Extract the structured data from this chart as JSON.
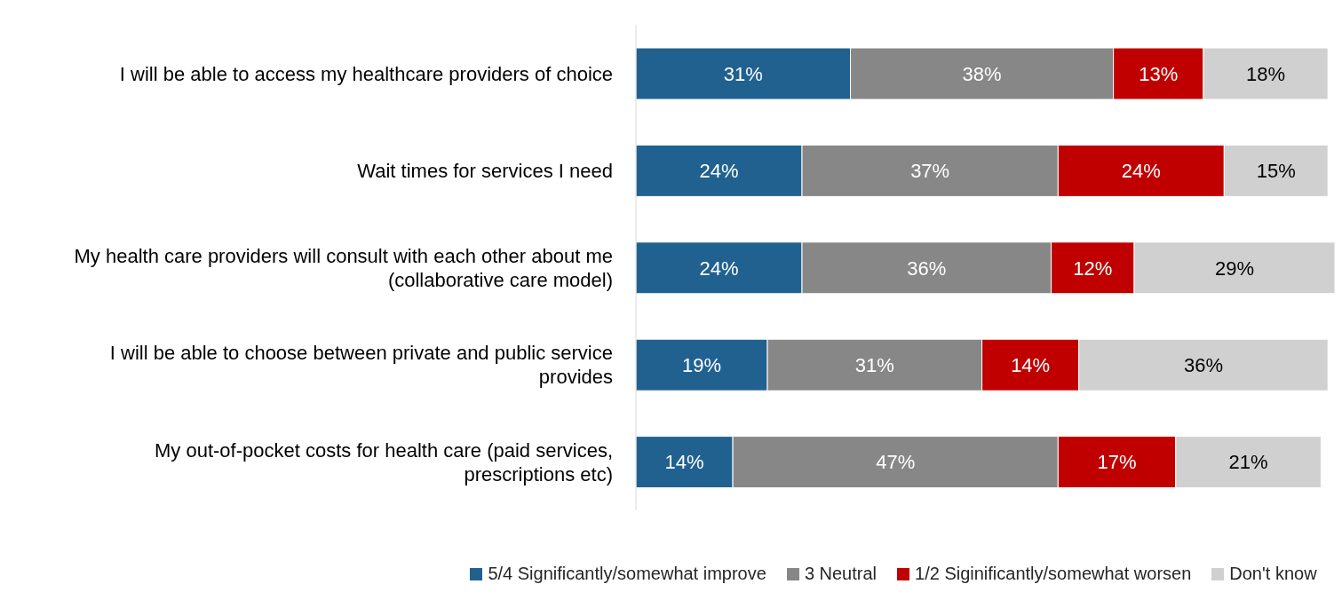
{
  "chart_data": {
    "type": "bar",
    "orientation": "horizontal",
    "stacked": true,
    "grid": false,
    "legend": "bottom",
    "categories": [
      "I will be able to access my healthcare providers of choice",
      "Wait times for services I need",
      "My health care providers will consult with each other about me (collaborative care model)",
      "I will be able to choose between private and public service provides",
      "My out-of-pocket costs for health care (paid services, prescriptions etc)"
    ],
    "series": [
      {
        "name": "5/4 Significantly/somewhat improve",
        "color": "#20618f",
        "values": [
          31,
          24,
          24,
          19,
          14
        ],
        "value_labels": [
          "31%",
          "24%",
          "24%",
          "19%",
          "14%"
        ]
      },
      {
        "name": "3 Neutral",
        "color": "#878787",
        "values": [
          38,
          37,
          36,
          31,
          47
        ],
        "value_labels": [
          "38%",
          "37%",
          "36%",
          "31%",
          "47%"
        ]
      },
      {
        "name": "1/2 Siginificantly/somewhat worsen",
        "color": "#c00000",
        "values": [
          13,
          24,
          12,
          14,
          17
        ],
        "value_labels": [
          "13%",
          "24%",
          "12%",
          "14%",
          "17%"
        ]
      },
      {
        "name": "Don't know",
        "color": "#d0d0d0",
        "values": [
          18,
          15,
          29,
          36,
          21
        ],
        "value_labels": [
          "18%",
          "15%",
          "29%",
          "36%",
          "21%"
        ]
      }
    ]
  }
}
